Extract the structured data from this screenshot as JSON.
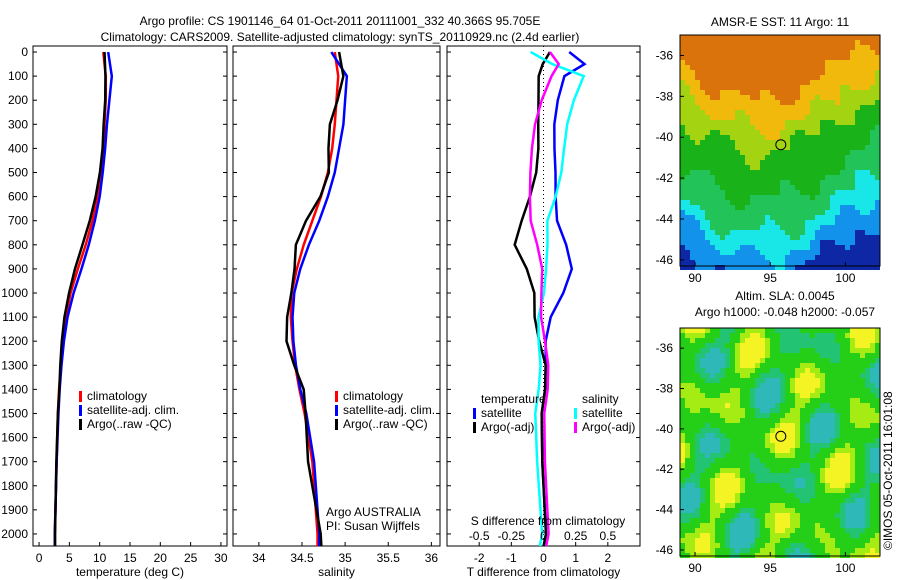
{
  "title_line1": "Argo profile: CS 1901146_64 01-Oct-2011 20111001_332 40.366S 95.705E",
  "title_line2": "Climatology: CARS2009. Satellite-adjusted climatology: synTS_20110929.nc (2.4d earlier)",
  "credit": "©IMOS 05-Oct-2011 16:01:08",
  "chart_data": [
    {
      "type": "line",
      "name": "temperature",
      "xlabel": "temperature (deg C)",
      "xlim": [
        -1,
        31
      ],
      "ylim": [
        2050,
        -25
      ],
      "xticks": [
        "0",
        "5",
        "10",
        "15",
        "20",
        "25",
        "30"
      ],
      "xtick_values": [
        0,
        5,
        10,
        15,
        20,
        25,
        30
      ],
      "yticks": [
        "0",
        "100",
        "200",
        "300",
        "400",
        "500",
        "600",
        "700",
        "800",
        "900",
        "1000",
        "1100",
        "1200",
        "1300",
        "1400",
        "1500",
        "1600",
        "1700",
        "1800",
        "1900",
        "2000"
      ],
      "depth": [
        0,
        100,
        200,
        300,
        400,
        500,
        600,
        700,
        800,
        900,
        1000,
        1100,
        1200,
        1300,
        1400,
        1500,
        1700,
        2000,
        2050
      ],
      "series": [
        {
          "name": "climatology",
          "color": "#ff0000",
          "values": [
            10.6,
            11,
            11,
            10.8,
            10.6,
            10.2,
            9.6,
            8.8,
            7.7,
            6.4,
            5.2,
            4.4,
            3.9,
            3.6,
            3.3,
            3.1,
            2.9,
            2.6,
            2.6
          ]
        },
        {
          "name": "satellite-adj. clim.",
          "color": "#0000ff",
          "values": [
            11.4,
            12,
            11.6,
            11.2,
            10.9,
            10.5,
            10,
            9.2,
            8.2,
            7,
            5.7,
            4.7,
            4.1,
            3.7,
            3.4,
            3.2,
            2.9,
            2.6,
            2.6
          ]
        },
        {
          "name": "Argo(..raw -QC)",
          "color": "#000000",
          "values": [
            10.8,
            10.9,
            10.9,
            10.7,
            10.5,
            10,
            9.3,
            8.4,
            7.2,
            5.9,
            4.9,
            4.2,
            3.8,
            3.5,
            3.3,
            3.1,
            2.9,
            2.6,
            2.6
          ]
        }
      ],
      "legend": [
        "climatology",
        "satellite-adj. clim.",
        "Argo(..raw -QC)"
      ]
    },
    {
      "type": "line",
      "name": "salinity",
      "xlabel": "salinity",
      "xlim": [
        33.7,
        36.1
      ],
      "ylim": [
        2050,
        -25
      ],
      "xticks": [
        "34",
        "34.5",
        "35",
        "35.5",
        "36"
      ],
      "xtick_values": [
        34,
        34.5,
        35,
        35.5,
        36
      ],
      "depth": [
        0,
        100,
        200,
        300,
        400,
        500,
        600,
        700,
        800,
        900,
        1000,
        1100,
        1200,
        1300,
        1400,
        1500,
        1700,
        2000,
        2050
      ],
      "series": [
        {
          "name": "climatology",
          "color": "#ff0000",
          "values": [
            34.88,
            34.92,
            34.9,
            34.88,
            34.85,
            34.8,
            34.72,
            34.62,
            34.52,
            34.44,
            34.38,
            34.37,
            34.39,
            34.42,
            34.47,
            34.53,
            34.62,
            34.68,
            34.68
          ]
        },
        {
          "name": "satellite-adj. clim.",
          "color": "#0000ff",
          "values": [
            34.84,
            35.02,
            35,
            34.98,
            34.93,
            34.88,
            34.8,
            34.7,
            34.58,
            34.48,
            34.41,
            34.39,
            34.4,
            34.43,
            34.48,
            34.55,
            34.64,
            34.7,
            34.7
          ]
        },
        {
          "name": "Argo(..raw -QC)",
          "color": "#000000",
          "values": [
            34.93,
            34.93,
            34.9,
            34.87,
            34.83,
            34.77,
            34.68,
            34.58,
            34.47,
            34.39,
            34.33,
            34.34,
            34.37,
            34.41,
            34.47,
            34.53,
            34.62,
            34.68,
            34.68
          ]
        }
      ],
      "legend": [
        "climatology",
        "satellite-adj. clim.",
        "Argo(..raw -QC)"
      ],
      "annotation": [
        "Argo AUSTRALIA",
        "PI: Susan Wijffels"
      ]
    },
    {
      "type": "line",
      "name": "difference",
      "xlabel": "T difference from climatology",
      "x2label": "S difference from climatology",
      "xlim": [
        -3,
        3
      ],
      "ylim": [
        2050,
        -25
      ],
      "xticks": [
        "-2",
        "-1",
        "0",
        "1",
        "2"
      ],
      "xtick_values": [
        -2,
        -1,
        0,
        1,
        2
      ],
      "x2ticks": [
        "-0.5",
        "-0.25",
        "0",
        "0.25",
        "0.5"
      ],
      "x2tick_values": [
        -0.5,
        -0.25,
        0,
        0.25,
        0.5
      ],
      "depth": [
        0,
        50,
        100,
        200,
        300,
        400,
        500,
        600,
        700,
        800,
        900,
        1000,
        1100,
        1200,
        1300,
        1400,
        1500,
        1700,
        2000,
        2050
      ],
      "series": [
        {
          "name": "temperature satellite",
          "color": "#0000ff",
          "values": [
            0.8,
            1.2,
            0.6,
            0.5,
            0.4,
            0.3,
            0.3,
            0.4,
            0.5,
            0.7,
            0.8,
            0.6,
            0.3,
            0.1,
            0,
            0,
            0,
            0,
            0,
            0
          ]
        },
        {
          "name": "temperature Argo(-adj)",
          "color": "#000000",
          "values": [
            0.2,
            -0.1,
            -0.2,
            -0.1,
            -0.1,
            -0.2,
            -0.3,
            -0.4,
            -0.6,
            -0.9,
            -0.6,
            -0.3,
            -0.2,
            -0.1,
            0,
            0,
            0,
            0,
            0,
            0
          ]
        },
        {
          "name": "salinity satellite",
          "color": "#00ffff",
          "values": [
            -0.1,
            0.05,
            0.3,
            0.25,
            0.2,
            0.15,
            0.12,
            0.1,
            0.05,
            0.03,
            0,
            0,
            -0.02,
            -0.03,
            -0.04,
            -0.05,
            -0.05,
            -0.04,
            -0.03,
            -0.03
          ]
        },
        {
          "name": "salinity Argo(-adj)",
          "color": "#ff00ff",
          "values": [
            0.05,
            0.1,
            0.05,
            0.0,
            -0.05,
            -0.1,
            -0.12,
            -0.1,
            -0.08,
            -0.05,
            -0.03,
            -0.02,
            0,
            0.02,
            0.02,
            0.02,
            0.02,
            0.02,
            0.02,
            0.02
          ]
        }
      ],
      "legend_temperature_title": "temperature",
      "legend_salinity_title": "salinity",
      "legend": [
        "satellite",
        "Argo(-adj)",
        "satellite",
        "Argo(-adj)"
      ]
    },
    {
      "type": "heatmap",
      "name": "sst-map",
      "title": "AMSR-E SST: 11 Argo: 11",
      "yticks": [
        "-36",
        "-38",
        "-40",
        "-42",
        "-44",
        "-46"
      ],
      "ytick_values": [
        -36,
        -38,
        -40,
        -42,
        -44,
        -46
      ],
      "xticks": [
        "90",
        "95",
        "100"
      ],
      "xtick_values": [
        90,
        95,
        100
      ],
      "lon": [
        89,
        102.3
      ],
      "lat": [
        -46.3,
        -35
      ]
    },
    {
      "type": "heatmap",
      "name": "sla-map",
      "title_line1": "Altim. SLA: 0.0045",
      "title_line2": "Argo h1000: -0.048 h2000: -0.057",
      "yticks": [
        "-36",
        "-38",
        "-40",
        "-42",
        "-44",
        "-46"
      ],
      "ytick_values": [
        -36,
        -38,
        -40,
        -42,
        -44,
        -46
      ],
      "xticks": [
        "90",
        "95",
        "100"
      ],
      "xtick_values": [
        90,
        95,
        100
      ],
      "lon": [
        89,
        102.3
      ],
      "lat": [
        -46.3,
        -35
      ]
    }
  ],
  "argo_position": {
    "lon": 95.705,
    "lat": -40.366
  }
}
